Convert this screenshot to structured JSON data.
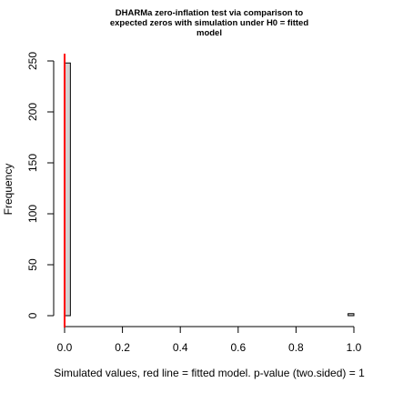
{
  "chart_data": {
    "type": "bar",
    "title_lines": [
      "DHARMa zero-inflation test via comparison to",
      "expected zeros with simulation under H0 = fitted",
      "model"
    ],
    "xlabel": "Simulated values, red line = fitted model. p-value (two.sided) = 1",
    "ylabel": "Frequency",
    "xlim": [
      0,
      1
    ],
    "ylim": [
      0,
      250
    ],
    "x_ticks": [
      "0.0",
      "0.2",
      "0.4",
      "0.6",
      "0.8",
      "1.0"
    ],
    "y_ticks": [
      "0",
      "50",
      "100",
      "150",
      "200",
      "250"
    ],
    "bins": [
      {
        "x0": 0.0,
        "x1": 0.02,
        "count": 248
      },
      {
        "x0": 0.98,
        "x1": 1.0,
        "count": 2
      }
    ],
    "fitted_value": 0.0,
    "colors": {
      "bar_fill": "#d3d3d3",
      "bar_stroke": "#000000",
      "reference_line": "#ff0000"
    }
  }
}
